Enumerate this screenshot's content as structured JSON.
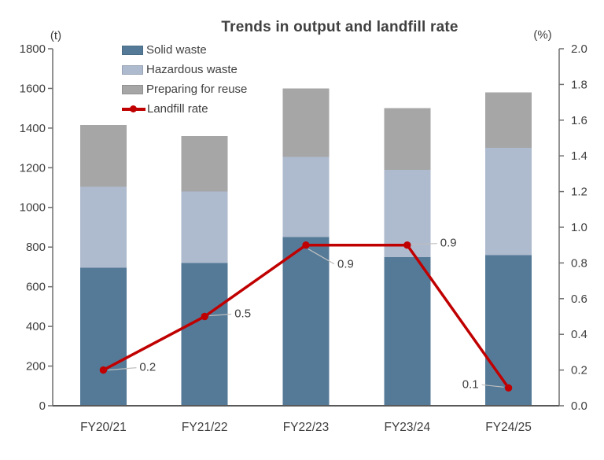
{
  "chart_data": {
    "type": "bar",
    "subtype": "stacked-bars-with-line-overlay",
    "title": "Trends in output and landfill rate",
    "categories": [
      "FY20/21",
      "FY21/22",
      "FY22/23",
      "FY23/24",
      "FY24/25"
    ],
    "series": [
      {
        "name": "Solid waste",
        "type": "bar",
        "stack": "output",
        "color": "#547a98",
        "values": [
          695,
          720,
          850,
          750,
          760
        ]
      },
      {
        "name": "Hazardous waste",
        "type": "bar",
        "stack": "output",
        "color": "#aebacd",
        "values": [
          410,
          360,
          405,
          440,
          540
        ]
      },
      {
        "name": "Preparing for reuse",
        "type": "bar",
        "stack": "output",
        "color": "#a6a6a6",
        "values": [
          310,
          280,
          345,
          310,
          280
        ]
      },
      {
        "name": "Landfill rate",
        "type": "line",
        "axis": "right",
        "color": "#c00000",
        "values": [
          0.2,
          0.5,
          0.9,
          0.9,
          0.1
        ],
        "point_labels": [
          "0.2",
          "0.5",
          "0.9",
          "0.9",
          "0.1"
        ]
      }
    ],
    "stack_totals": [
      1415,
      1360,
      1600,
      1500,
      1580
    ],
    "left_axis": {
      "unit": "(t)",
      "min": 0,
      "max": 1800,
      "step": 200
    },
    "right_axis": {
      "unit": "(%)",
      "min": 0.0,
      "max": 2.0,
      "step": 0.2,
      "decimals": 1
    },
    "grid": false,
    "legend_position": "top-left-inside",
    "colors": {
      "text": "#404040",
      "axis_line": "#6e6e6e",
      "baseline": "#595959",
      "leader_line": "#bfbfbf"
    }
  }
}
